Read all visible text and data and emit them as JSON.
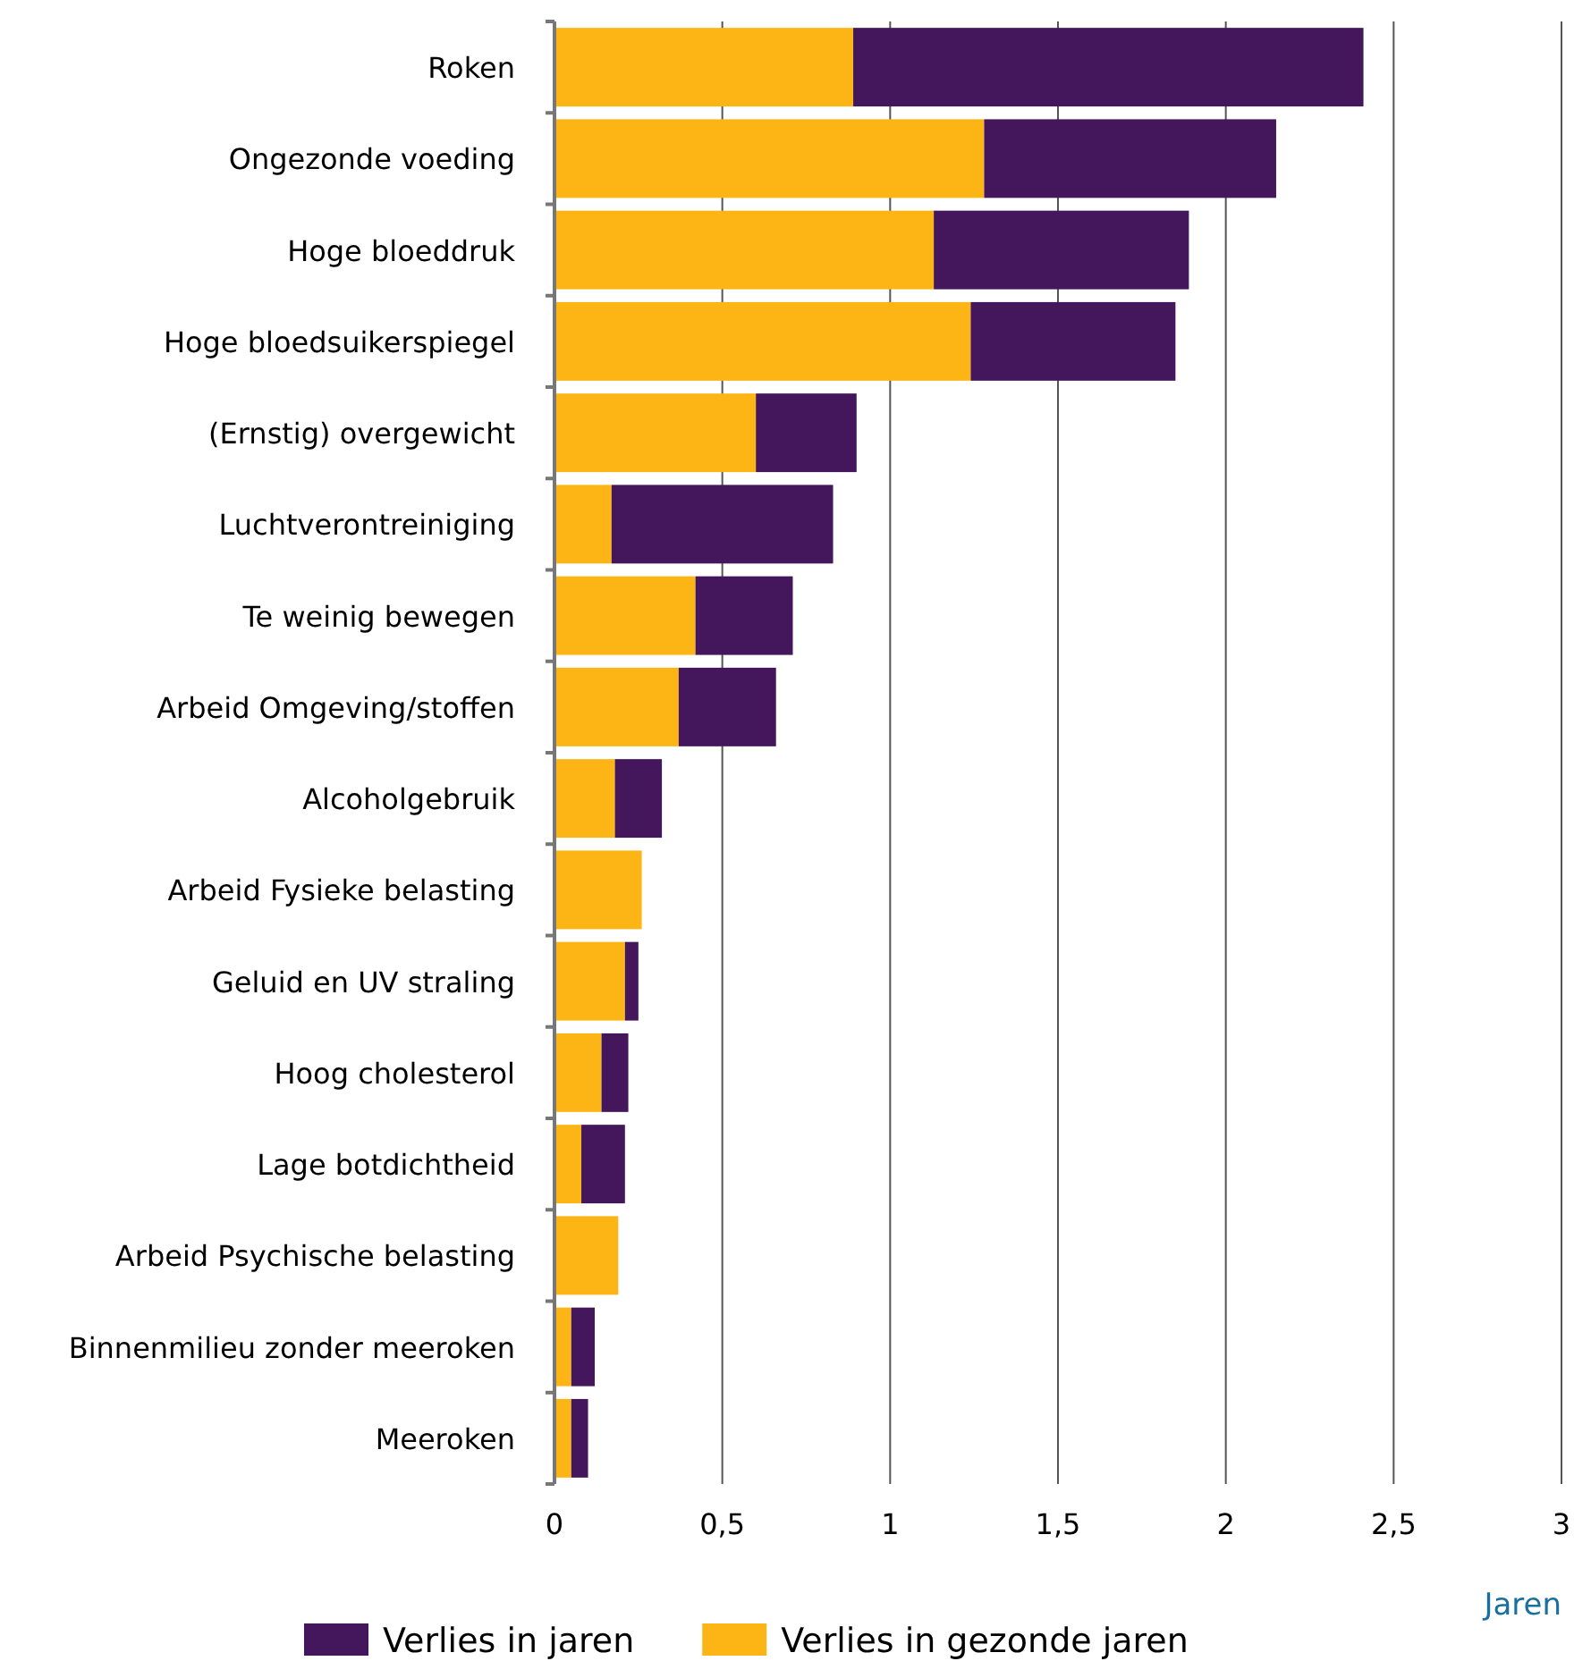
{
  "chart_data": {
    "type": "bar",
    "orientation": "horizontal",
    "stacked": true,
    "categories": [
      "Roken",
      "Ongezonde voeding",
      "Hoge bloeddruk",
      "Hoge bloedsuikerspiegel",
      "(Ernstig) overgewicht",
      "Luchtverontreiniging",
      "Te weinig bewegen",
      "Arbeid Omgeving/stoffen",
      "Alcoholgebruik",
      "Arbeid Fysieke belasting",
      "Geluid en UV straling",
      "Hoog cholesterol",
      "Lage botdichtheid",
      "Arbeid Psychische belasting",
      "Binnenmilieu zonder meeroken",
      "Meeroken"
    ],
    "series": [
      {
        "name": "Verlies in gezonde jaren",
        "color": "#fdb515",
        "values": [
          0.89,
          1.28,
          1.13,
          1.24,
          0.6,
          0.17,
          0.42,
          0.37,
          0.18,
          0.26,
          0.21,
          0.14,
          0.08,
          0.19,
          0.05,
          0.05
        ]
      },
      {
        "name": "Verlies in jaren",
        "color": "#44175c",
        "values": [
          1.52,
          0.87,
          0.76,
          0.61,
          0.3,
          0.66,
          0.29,
          0.29,
          0.14,
          0,
          0.04,
          0.08,
          0.13,
          0,
          0.07,
          0.05
        ]
      }
    ],
    "xlim": [
      0,
      3
    ],
    "xticks": [
      0,
      {
        "value": 0.5,
        "label": "0,5"
      },
      1,
      {
        "value": 1.5,
        "label": "1,5"
      },
      2,
      {
        "value": 2.5,
        "label": "2,5"
      },
      3
    ],
    "xlabel": "Jaren",
    "grid": "x",
    "legend": "bottom"
  }
}
